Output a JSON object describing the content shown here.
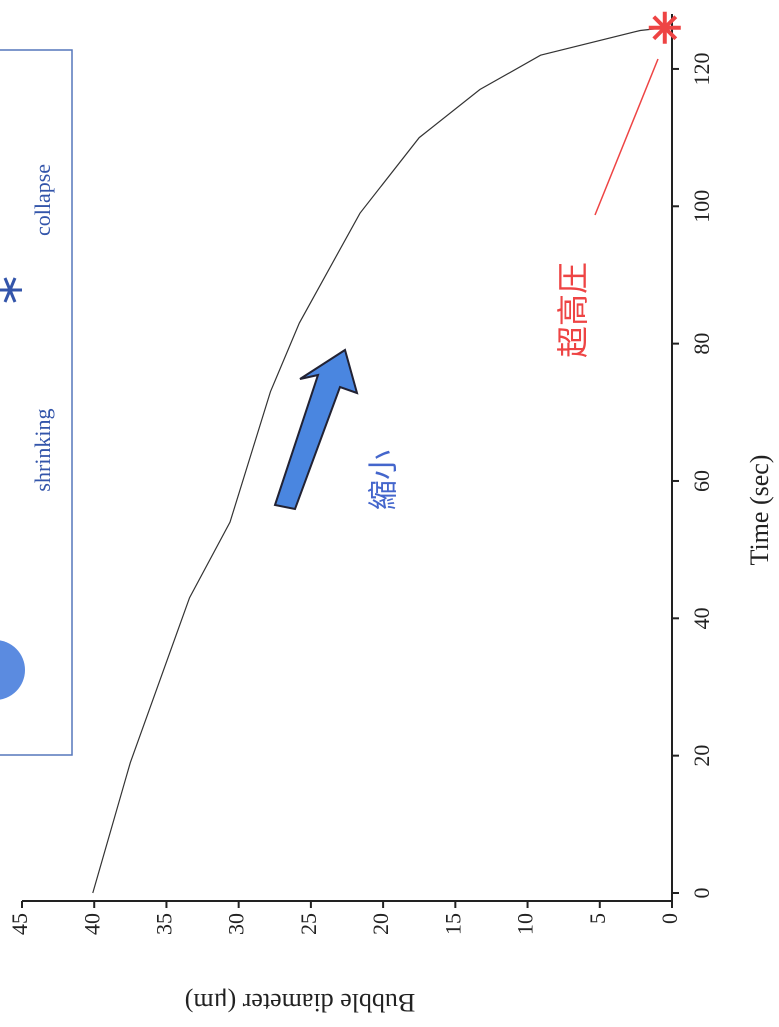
{
  "chart_data": {
    "type": "line",
    "x_label": "Time (sec)",
    "y_label": "Bubble diameter (μm)",
    "x": [
      0,
      19,
      43,
      54,
      73,
      83,
      99,
      110,
      117,
      122,
      125.6,
      126
    ],
    "values": [
      40.1,
      37.5,
      33.4,
      30.6,
      27.8,
      25.8,
      21.6,
      17.5,
      13.3,
      9.1,
      2.2,
      0.5
    ],
    "color": "#333333",
    "xlim": [
      0,
      128
    ],
    "xticks": [
      0,
      20,
      40,
      60,
      80,
      100,
      120
    ],
    "ylim": [
      0,
      45
    ],
    "yticks": [
      0,
      5,
      10,
      15,
      20,
      25,
      30,
      35,
      40,
      45
    ],
    "annotations": {
      "high_pressure": "超高圧",
      "shrink": "縮小"
    },
    "legend": {
      "shrinking": "shrinking",
      "collapse": "collapse"
    }
  }
}
